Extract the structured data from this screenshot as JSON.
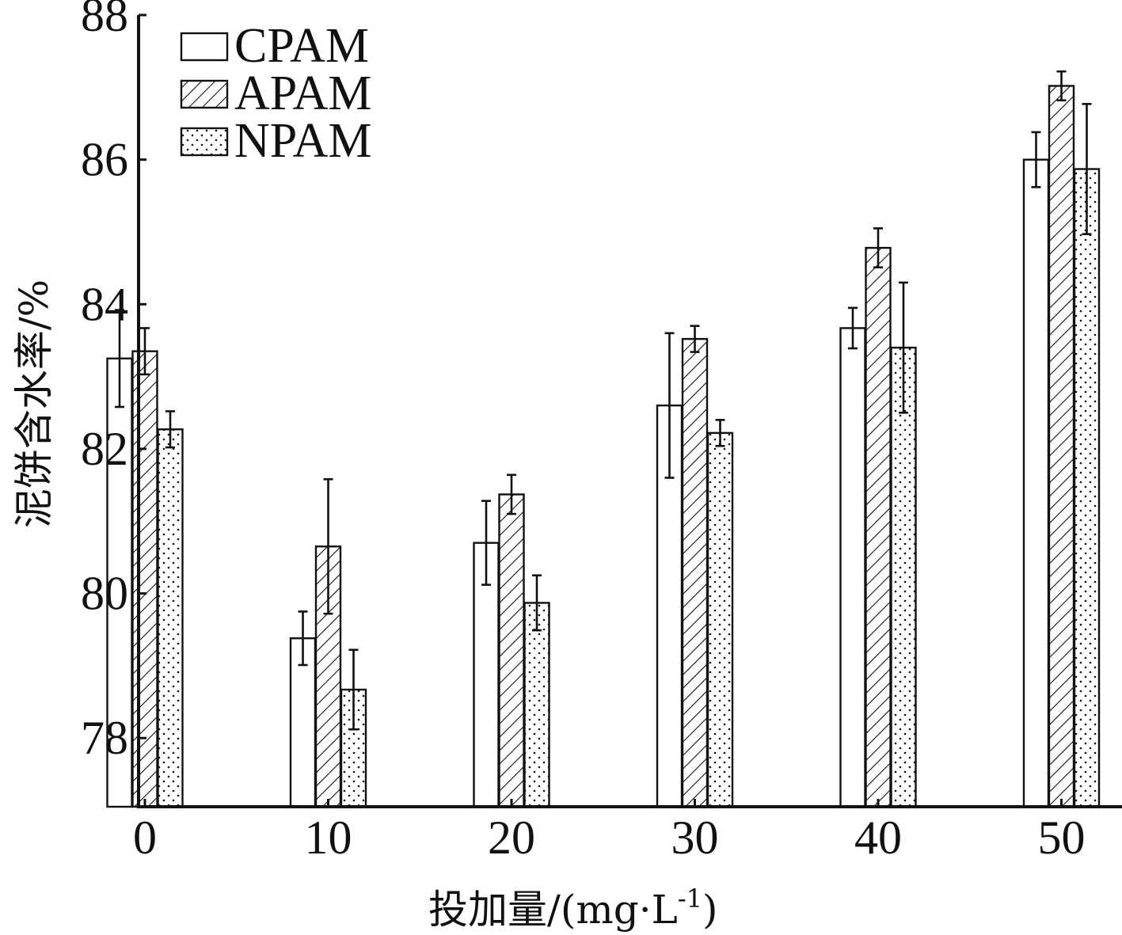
{
  "chart_data": {
    "type": "bar",
    "xlabel": "投加量/(mg·L",
    "xlabel_sup": "-1",
    "xlabel_tail": ")",
    "ylabel": "泥饼含水率/%",
    "categories": [
      "0",
      "10",
      "20",
      "30",
      "40",
      "50"
    ],
    "x_ticks": [
      "0",
      "10",
      "20",
      "30",
      "40",
      "50"
    ],
    "y_ticks": [
      "78",
      "80",
      "82",
      "84",
      "86",
      "88"
    ],
    "ylim": [
      77.05,
      88
    ],
    "xlim": [
      0,
      53.8
    ],
    "legend_position": "top-left",
    "series": [
      {
        "name": "CPAM",
        "pattern": "blank",
        "values": [
          83.25,
          79.38,
          80.7,
          82.6,
          83.67,
          86.0
        ],
        "errors": [
          0.67,
          0.37,
          0.58,
          1.0,
          0.28,
          0.38
        ]
      },
      {
        "name": "APAM",
        "pattern": "hatch",
        "values": [
          83.35,
          80.65,
          81.37,
          83.52,
          84.78,
          87.02
        ],
        "errors": [
          0.32,
          0.93,
          0.27,
          0.18,
          0.27,
          0.2
        ]
      },
      {
        "name": "NPAM",
        "pattern": "dots",
        "values": [
          82.27,
          78.67,
          79.87,
          82.22,
          83.4,
          85.87
        ],
        "errors": [
          0.25,
          0.55,
          0.38,
          0.18,
          0.9,
          0.9
        ]
      }
    ]
  }
}
